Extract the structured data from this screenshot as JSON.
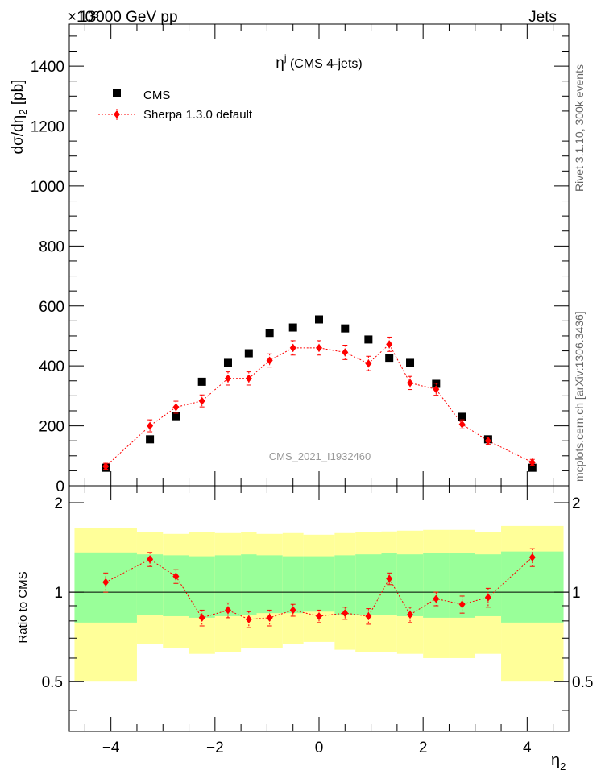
{
  "header": {
    "beam": "13000 GeV pp",
    "category": "Jets",
    "multiplier": "×10³",
    "title_symbol": "η",
    "title_sup": "j",
    "title_rest": " (CMS 4-jets)",
    "watermark": "CMS_2021_I1932460",
    "rivet_label": "Rivet 3.1.10,  300k events",
    "mcplots_label": "mcplots.cern.ch [arXiv:1306.3436]"
  },
  "legend": {
    "cms": "CMS",
    "sherpa": "Sherpa 1.3.0 default"
  },
  "colors": {
    "data": "#000000",
    "mc": "#ff0000",
    "band_inner": "#99ff99",
    "band_outer": "#ffff99"
  },
  "chart_data": [
    {
      "type": "scatter",
      "title": "η^j (CMS 4-jets)",
      "xlabel": "η_2",
      "ylabel": "dσ/dη_2 [pb]",
      "xlim": [
        -4.8,
        4.8
      ],
      "ylim": [
        0,
        1540
      ],
      "y_multiplier": "×10³",
      "x": [
        -4.1,
        -3.25,
        -2.75,
        -2.25,
        -1.75,
        -1.35,
        -0.95,
        -0.5,
        0.0,
        0.5,
        0.95,
        1.35,
        1.75,
        2.25,
        2.75,
        3.25,
        4.1
      ],
      "y_ticks": [
        0,
        200,
        400,
        600,
        800,
        1000,
        1200,
        1400
      ],
      "series": [
        {
          "name": "CMS",
          "values": [
            60,
            155,
            232,
            347,
            410,
            442,
            510,
            528,
            555,
            525,
            488,
            427,
            410,
            340,
            230,
            155,
            60
          ]
        },
        {
          "name": "Sherpa 1.3.0 default",
          "values": [
            65,
            200,
            262,
            283,
            358,
            358,
            418,
            460,
            460,
            445,
            408,
            472,
            343,
            322,
            205,
            150,
            78
          ],
          "errors": [
            10,
            20,
            20,
            20,
            22,
            22,
            22,
            24,
            24,
            24,
            24,
            24,
            22,
            20,
            15,
            12,
            10
          ]
        }
      ]
    },
    {
      "type": "scatter",
      "title": "",
      "xlabel": "η_2",
      "ylabel": "Ratio to CMS",
      "xlim": [
        -4.8,
        4.8
      ],
      "ylim": [
        0.34,
        2.28
      ],
      "y_ticks": [
        0.5,
        1,
        2
      ],
      "x_ticks": [
        -4,
        -2,
        0,
        2,
        4
      ],
      "bin_edges": [
        -4.7,
        -3.5,
        -3.0,
        -2.5,
        -2.0,
        -1.5,
        -1.2,
        -0.7,
        -0.3,
        0.3,
        0.7,
        1.2,
        1.5,
        2.0,
        2.5,
        3.0,
        3.5,
        4.7
      ],
      "band_inner": {
        "low": [
          0.79,
          0.84,
          0.83,
          0.82,
          0.83,
          0.84,
          0.85,
          0.85,
          0.86,
          0.84,
          0.84,
          0.84,
          0.83,
          0.82,
          0.82,
          0.83,
          0.79
        ],
        "high": [
          1.36,
          1.34,
          1.33,
          1.32,
          1.33,
          1.34,
          1.33,
          1.32,
          1.32,
          1.33,
          1.34,
          1.35,
          1.34,
          1.35,
          1.35,
          1.34,
          1.37
        ]
      },
      "band_outer": {
        "low": [
          0.5,
          0.67,
          0.65,
          0.62,
          0.63,
          0.65,
          0.65,
          0.67,
          0.68,
          0.64,
          0.63,
          0.63,
          0.62,
          0.6,
          0.6,
          0.62,
          0.5
        ],
        "high": [
          1.64,
          1.59,
          1.57,
          1.59,
          1.58,
          1.59,
          1.57,
          1.58,
          1.56,
          1.58,
          1.59,
          1.6,
          1.61,
          1.62,
          1.62,
          1.59,
          1.67
        ]
      },
      "series": [
        {
          "name": "Sherpa 1.3.0 default",
          "values": [
            1.08,
            1.29,
            1.13,
            0.82,
            0.87,
            0.81,
            0.82,
            0.87,
            0.83,
            0.85,
            0.83,
            1.11,
            0.84,
            0.95,
            0.91,
            0.96,
            1.31
          ],
          "errors": [
            0.08,
            0.07,
            0.06,
            0.05,
            0.05,
            0.05,
            0.05,
            0.04,
            0.04,
            0.04,
            0.05,
            0.05,
            0.05,
            0.05,
            0.06,
            0.07,
            0.09
          ]
        }
      ]
    }
  ]
}
